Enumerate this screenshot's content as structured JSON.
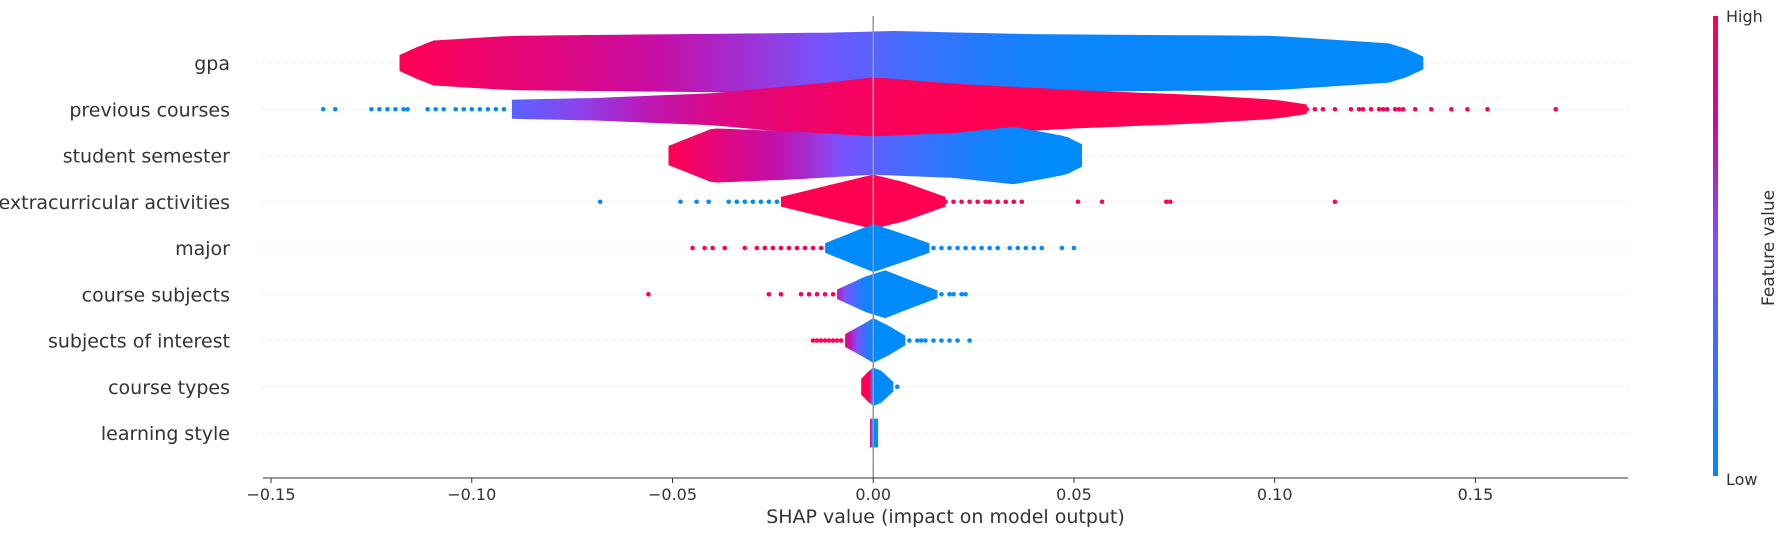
{
  "chart_data": {
    "type": "violin",
    "xlabel": "SHAP value (impact on model output)",
    "xlim": [
      -0.152,
      0.188
    ],
    "xticks": [
      -0.15,
      -0.1,
      -0.05,
      0.0,
      0.05,
      0.1,
      0.15
    ],
    "xtick_labels": [
      "−0.15",
      "−0.10",
      "−0.05",
      "0.00",
      "0.05",
      "0.10",
      "0.15"
    ],
    "colorbar": {
      "title": "Feature value",
      "high_label": "High",
      "low_label": "Low",
      "high_color": "#ff0052",
      "low_color": "#008bfb"
    },
    "features": [
      {
        "name": "gpa",
        "range": [
          -0.118,
          0.137
        ],
        "width": [
          [
            -0.118,
            0.25
          ],
          [
            -0.11,
            0.7
          ],
          [
            -0.09,
            0.85
          ],
          [
            -0.05,
            0.9
          ],
          [
            -0.01,
            0.95
          ],
          [
            0.005,
            1.0
          ],
          [
            0.04,
            0.9
          ],
          [
            0.1,
            0.85
          ],
          [
            0.13,
            0.6
          ],
          [
            0.137,
            0.2
          ]
        ],
        "color": [
          [
            -0.118,
            1.0
          ],
          [
            -0.06,
            0.8
          ],
          [
            -0.02,
            0.55
          ],
          [
            0.01,
            0.25
          ],
          [
            0.04,
            0.05
          ],
          [
            0.137,
            0.0
          ]
        ],
        "outliers": []
      },
      {
        "name": "previous courses",
        "range": [
          -0.09,
          0.108
        ],
        "width": [
          [
            -0.09,
            0.3
          ],
          [
            -0.07,
            0.35
          ],
          [
            -0.04,
            0.5
          ],
          [
            -0.01,
            0.85
          ],
          [
            0.0,
            1.0
          ],
          [
            0.02,
            0.8
          ],
          [
            0.05,
            0.6
          ],
          [
            0.08,
            0.45
          ],
          [
            0.1,
            0.3
          ],
          [
            0.108,
            0.15
          ]
        ],
        "color": [
          [
            -0.09,
            0.35
          ],
          [
            -0.07,
            0.6
          ],
          [
            -0.04,
            0.85
          ],
          [
            -0.01,
            0.95
          ],
          [
            0.02,
            1.0
          ],
          [
            0.108,
            1.0
          ]
        ],
        "outliers": [
          [
            -0.137,
            0.0
          ],
          [
            -0.134,
            0.0
          ],
          [
            -0.125,
            0.0
          ],
          [
            -0.123,
            0.0
          ],
          [
            -0.121,
            0.0
          ],
          [
            -0.119,
            0.0
          ],
          [
            -0.117,
            0.0
          ],
          [
            -0.116,
            0.0
          ],
          [
            -0.111,
            0.0
          ],
          [
            -0.109,
            0.0
          ],
          [
            -0.107,
            0.0
          ],
          [
            -0.104,
            0.0
          ],
          [
            -0.102,
            0.0
          ],
          [
            -0.1,
            0.0
          ],
          [
            -0.098,
            0.0
          ],
          [
            -0.096,
            0.0
          ],
          [
            -0.094,
            0.0
          ],
          [
            -0.092,
            0.0
          ],
          [
            0.108,
            1.0
          ],
          [
            0.11,
            1.0
          ],
          [
            0.112,
            1.0
          ],
          [
            0.115,
            1.0
          ],
          [
            0.119,
            1.0
          ],
          [
            0.121,
            1.0
          ],
          [
            0.122,
            1.0
          ],
          [
            0.124,
            1.0
          ],
          [
            0.126,
            1.0
          ],
          [
            0.127,
            1.0
          ],
          [
            0.128,
            1.0
          ],
          [
            0.13,
            1.0
          ],
          [
            0.131,
            1.0
          ],
          [
            0.132,
            1.0
          ],
          [
            0.135,
            1.0
          ],
          [
            0.139,
            1.0
          ],
          [
            0.144,
            1.0
          ],
          [
            0.148,
            1.0
          ],
          [
            0.153,
            1.0
          ],
          [
            0.17,
            1.0
          ]
        ]
      },
      {
        "name": "student semester",
        "range": [
          -0.051,
          0.052
        ],
        "width": [
          [
            -0.051,
            0.3
          ],
          [
            -0.04,
            0.85
          ],
          [
            -0.02,
            0.75
          ],
          [
            0.0,
            0.6
          ],
          [
            0.02,
            0.7
          ],
          [
            0.035,
            0.9
          ],
          [
            0.048,
            0.6
          ],
          [
            0.052,
            0.35
          ]
        ],
        "color": [
          [
            -0.051,
            1.0
          ],
          [
            -0.035,
            0.85
          ],
          [
            -0.02,
            0.7
          ],
          [
            -0.005,
            0.45
          ],
          [
            0.01,
            0.25
          ],
          [
            0.025,
            0.1
          ],
          [
            0.04,
            0.0
          ],
          [
            0.052,
            0.0
          ]
        ],
        "outliers": []
      },
      {
        "name": "extracurricular activities",
        "range": [
          -0.023,
          0.018
        ],
        "width": [
          [
            -0.023,
            0.15
          ],
          [
            -0.01,
            0.55
          ],
          [
            0.0,
            0.85
          ],
          [
            0.008,
            0.6
          ],
          [
            0.018,
            0.15
          ]
        ],
        "color": [
          [
            -0.023,
            1.0
          ],
          [
            0.018,
            1.0
          ]
        ],
        "outliers": [
          [
            -0.068,
            0.0
          ],
          [
            -0.048,
            0.0
          ],
          [
            -0.044,
            0.0
          ],
          [
            -0.041,
            0.0
          ],
          [
            -0.036,
            0.0
          ],
          [
            -0.034,
            0.0
          ],
          [
            -0.032,
            0.0
          ],
          [
            -0.03,
            0.0
          ],
          [
            -0.028,
            0.0
          ],
          [
            -0.026,
            0.0
          ],
          [
            -0.024,
            0.0
          ],
          [
            0.018,
            1.0
          ],
          [
            0.02,
            1.0
          ],
          [
            0.022,
            1.0
          ],
          [
            0.024,
            1.0
          ],
          [
            0.026,
            1.0
          ],
          [
            0.028,
            1.0
          ],
          [
            0.029,
            1.0
          ],
          [
            0.031,
            1.0
          ],
          [
            0.033,
            1.0
          ],
          [
            0.035,
            1.0
          ],
          [
            0.037,
            1.0
          ],
          [
            0.051,
            1.0
          ],
          [
            0.057,
            1.0
          ],
          [
            0.073,
            1.0
          ],
          [
            0.074,
            1.0
          ],
          [
            0.115,
            1.0
          ]
        ]
      },
      {
        "name": "major",
        "range": [
          -0.012,
          0.014
        ],
        "width": [
          [
            -0.012,
            0.15
          ],
          [
            -0.005,
            0.5
          ],
          [
            0.0,
            0.75
          ],
          [
            0.006,
            0.5
          ],
          [
            0.014,
            0.15
          ]
        ],
        "color": [
          [
            -0.012,
            0.0
          ],
          [
            0.014,
            0.0
          ]
        ],
        "outliers": [
          [
            -0.045,
            1.0
          ],
          [
            -0.042,
            1.0
          ],
          [
            -0.04,
            1.0
          ],
          [
            -0.037,
            1.0
          ],
          [
            -0.032,
            1.0
          ],
          [
            -0.029,
            1.0
          ],
          [
            -0.027,
            1.0
          ],
          [
            -0.025,
            1.0
          ],
          [
            -0.023,
            1.0
          ],
          [
            -0.021,
            1.0
          ],
          [
            -0.019,
            1.0
          ],
          [
            -0.017,
            1.0
          ],
          [
            -0.015,
            1.0
          ],
          [
            -0.013,
            1.0
          ],
          [
            0.015,
            0.0
          ],
          [
            0.017,
            0.0
          ],
          [
            0.019,
            0.0
          ],
          [
            0.021,
            0.0
          ],
          [
            0.023,
            0.0
          ],
          [
            0.025,
            0.0
          ],
          [
            0.027,
            0.0
          ],
          [
            0.029,
            0.0
          ],
          [
            0.031,
            0.0
          ],
          [
            0.034,
            0.0
          ],
          [
            0.036,
            0.0
          ],
          [
            0.038,
            0.0
          ],
          [
            0.04,
            0.0
          ],
          [
            0.042,
            0.0
          ],
          [
            0.047,
            0.0
          ],
          [
            0.05,
            0.0
          ]
        ]
      },
      {
        "name": "course subjects",
        "range": [
          -0.009,
          0.016
        ],
        "width": [
          [
            -0.009,
            0.15
          ],
          [
            -0.002,
            0.55
          ],
          [
            0.003,
            0.75
          ],
          [
            0.008,
            0.5
          ],
          [
            0.016,
            0.12
          ]
        ],
        "color": [
          [
            -0.009,
            0.7
          ],
          [
            -0.004,
            0.2
          ],
          [
            0.0,
            0.0
          ],
          [
            0.016,
            0.0
          ]
        ],
        "outliers": [
          [
            -0.056,
            1.0
          ],
          [
            -0.026,
            1.0
          ],
          [
            -0.023,
            1.0
          ],
          [
            -0.018,
            1.0
          ],
          [
            -0.016,
            1.0
          ],
          [
            -0.014,
            1.0
          ],
          [
            -0.012,
            1.0
          ],
          [
            -0.01,
            1.0
          ],
          [
            0.017,
            0.0
          ],
          [
            0.019,
            0.0
          ],
          [
            0.02,
            0.0
          ],
          [
            0.022,
            0.0
          ],
          [
            0.023,
            0.0
          ]
        ]
      },
      {
        "name": "subjects of interest",
        "range": [
          -0.007,
          0.008
        ],
        "width": [
          [
            -0.007,
            0.2
          ],
          [
            -0.002,
            0.55
          ],
          [
            0.0,
            0.7
          ],
          [
            0.004,
            0.45
          ],
          [
            0.008,
            0.15
          ]
        ],
        "color": [
          [
            -0.007,
            0.9
          ],
          [
            -0.003,
            0.35
          ],
          [
            0.0,
            0.0
          ],
          [
            0.008,
            0.0
          ]
        ],
        "outliers": [
          [
            -0.015,
            1.0
          ],
          [
            -0.014,
            1.0
          ],
          [
            -0.013,
            1.0
          ],
          [
            -0.012,
            1.0
          ],
          [
            -0.011,
            1.0
          ],
          [
            -0.01,
            1.0
          ],
          [
            -0.009,
            1.0
          ],
          [
            -0.008,
            1.0
          ],
          [
            0.009,
            0.0
          ],
          [
            0.011,
            0.0
          ],
          [
            0.012,
            0.0
          ],
          [
            0.013,
            0.0
          ],
          [
            0.015,
            0.0
          ],
          [
            0.017,
            0.0
          ],
          [
            0.019,
            0.0
          ],
          [
            0.021,
            0.0
          ],
          [
            0.024,
            0.0
          ]
        ]
      },
      {
        "name": "course types",
        "range": [
          -0.003,
          0.005
        ],
        "width": [
          [
            -0.003,
            0.25
          ],
          [
            -0.001,
            0.5
          ],
          [
            0.0,
            0.6
          ],
          [
            0.002,
            0.5
          ],
          [
            0.005,
            0.15
          ]
        ],
        "color": [
          [
            -0.003,
            1.0
          ],
          [
            -0.001,
            1.0
          ],
          [
            0.0,
            0.0
          ],
          [
            0.005,
            0.0
          ]
        ],
        "outliers": [
          [
            0.006,
            0.0
          ]
        ]
      },
      {
        "name": "learning style",
        "range": [
          -0.0008,
          0.0012
        ],
        "width": [
          [
            -0.0008,
            0.45
          ],
          [
            0.0,
            0.45
          ],
          [
            0.0012,
            0.45
          ]
        ],
        "color": [
          [
            -0.0008,
            1.0
          ],
          [
            -0.0002,
            0.0
          ],
          [
            0.0012,
            0.0
          ]
        ],
        "outliers": []
      }
    ]
  }
}
